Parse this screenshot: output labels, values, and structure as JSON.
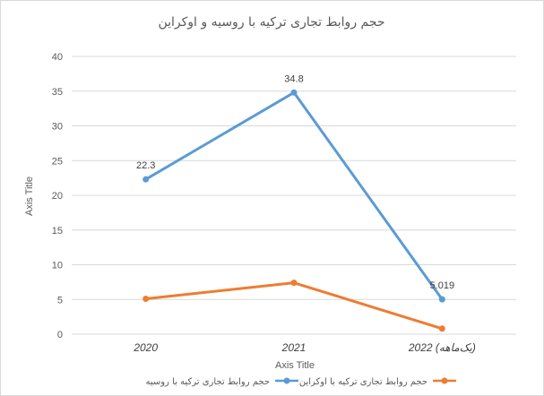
{
  "chart_data": {
    "type": "line",
    "title": "حجم روابط تجاری ترکیه با روسیه و اوکراین",
    "xlabel": "Axis Title",
    "ylabel": "Axis Title",
    "categories": [
      "2020",
      "2021",
      "2022 (یک‌ماهه)"
    ],
    "ylim": [
      0,
      40
    ],
    "yticks": [
      "0",
      "5",
      "10",
      "15",
      "20",
      "25",
      "30",
      "35",
      "40"
    ],
    "grid": true,
    "legend_position": "bottom",
    "series": [
      {
        "name": "حجم روابط تجاری ترکیه با روسیه",
        "values": [
          22.3,
          34.8,
          5.019
        ],
        "data_labels": [
          "22.3",
          "34.8",
          "5.019"
        ],
        "color": "#5b9bd5"
      },
      {
        "name": "حجم روابط تجاری ترکیه با اوکراین",
        "values": [
          5.1,
          7.4,
          0.8
        ],
        "data_labels": [],
        "color": "#ed7d31"
      }
    ]
  }
}
